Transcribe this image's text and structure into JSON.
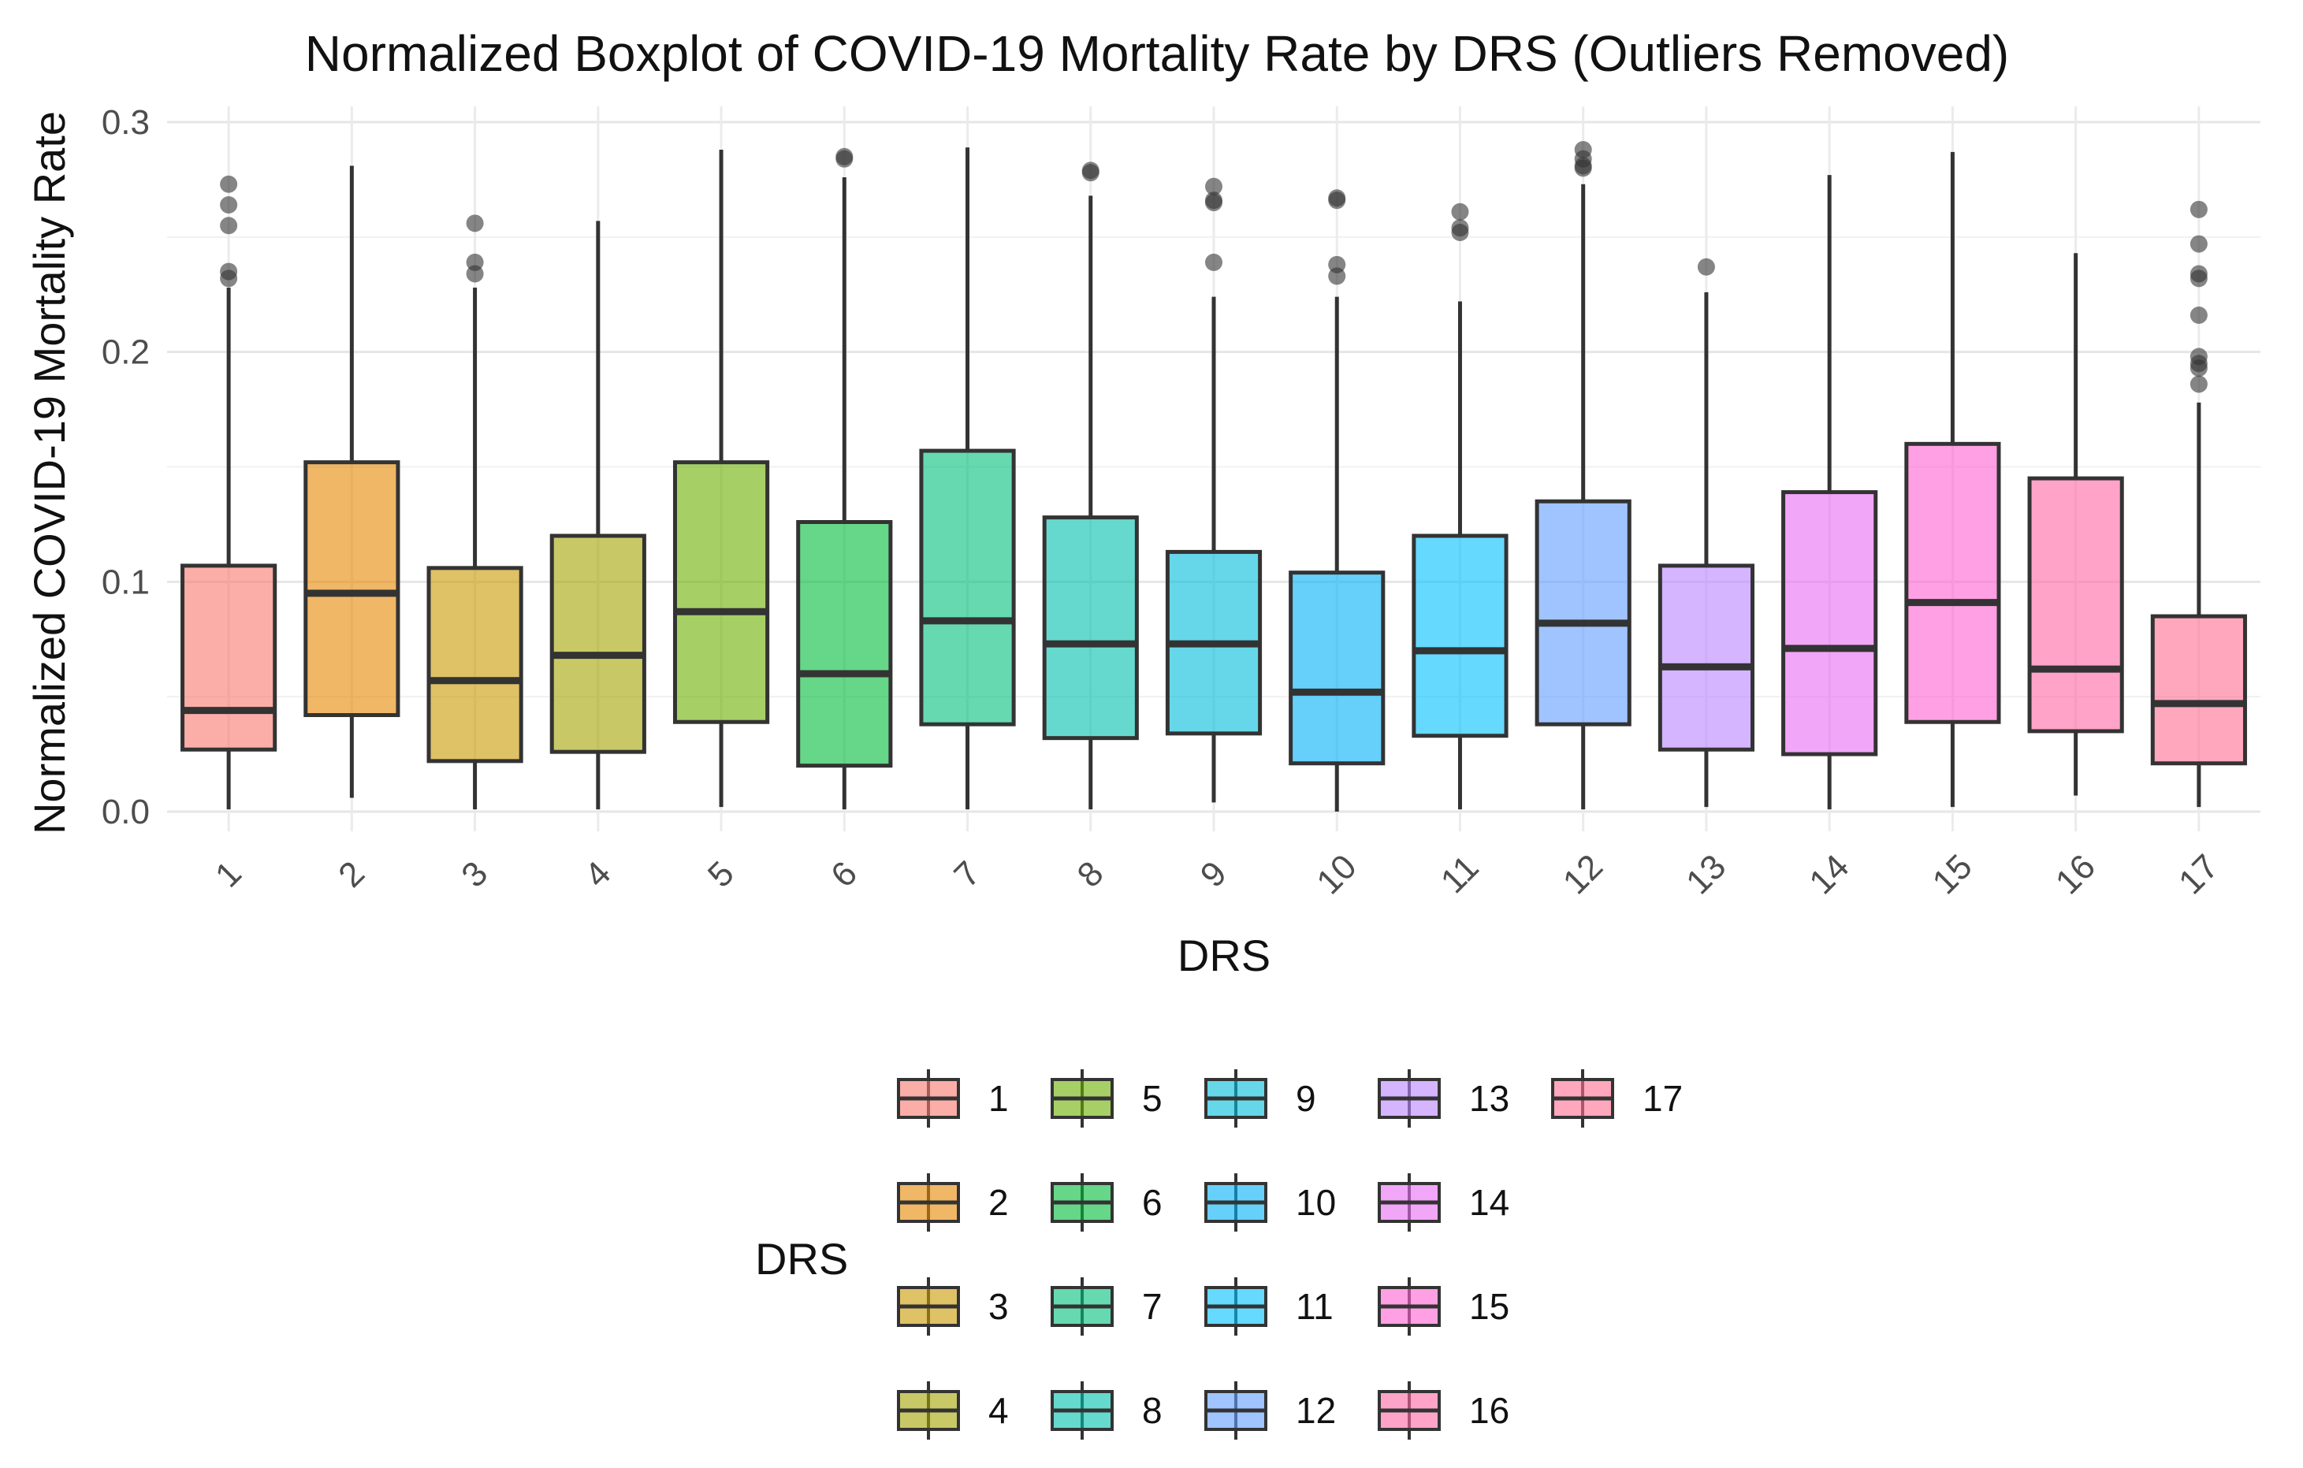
{
  "chart_data": {
    "type": "boxplot",
    "title": "Normalized Boxplot of COVID-19 Mortality Rate by DRS (Outliers Removed)",
    "xlabel": "DRS",
    "ylabel": "Normalized COVID-19 Mortality Rate",
    "ylim": [
      0.0,
      0.3
    ],
    "yticks": [
      "0.0",
      "0.1",
      "0.2",
      "0.3"
    ],
    "ytick_values": [
      0.0,
      0.1,
      0.2,
      0.3
    ],
    "grid": true,
    "legend": {
      "title": "DRS",
      "placement": "bottom"
    },
    "categories": [
      "1",
      "2",
      "3",
      "4",
      "5",
      "6",
      "7",
      "8",
      "9",
      "10",
      "11",
      "12",
      "13",
      "14",
      "15",
      "16",
      "17"
    ],
    "colors": [
      "#F8766D",
      "#E58700",
      "#C99800",
      "#A3A500",
      "#6BB100",
      "#00BA38",
      "#00BF7D",
      "#00C0AF",
      "#00BCD8",
      "#00B0F6",
      "#00BFFF",
      "#619CFF",
      "#B983FF",
      "#E76BF3",
      "#FD61D1",
      "#FF67A4",
      "#FF6C91"
    ],
    "series": [
      {
        "name": "1",
        "min": 0.001,
        "q1": 0.027,
        "median": 0.044,
        "q3": 0.107,
        "max": 0.228,
        "outliers": [
          0.273,
          0.264,
          0.255,
          0.235,
          0.232
        ]
      },
      {
        "name": "2",
        "min": 0.006,
        "q1": 0.042,
        "median": 0.095,
        "q3": 0.152,
        "max": 0.281,
        "outliers": []
      },
      {
        "name": "3",
        "min": 0.001,
        "q1": 0.022,
        "median": 0.057,
        "q3": 0.106,
        "max": 0.228,
        "outliers": [
          0.256,
          0.239,
          0.234
        ]
      },
      {
        "name": "4",
        "min": 0.001,
        "q1": 0.026,
        "median": 0.068,
        "q3": 0.12,
        "max": 0.257,
        "outliers": []
      },
      {
        "name": "5",
        "min": 0.002,
        "q1": 0.039,
        "median": 0.087,
        "q3": 0.152,
        "max": 0.288,
        "outliers": []
      },
      {
        "name": "6",
        "min": 0.001,
        "q1": 0.02,
        "median": 0.06,
        "q3": 0.126,
        "max": 0.276,
        "outliers": [
          0.285,
          0.284
        ]
      },
      {
        "name": "7",
        "min": 0.001,
        "q1": 0.038,
        "median": 0.083,
        "q3": 0.157,
        "max": 0.289,
        "outliers": []
      },
      {
        "name": "8",
        "min": 0.001,
        "q1": 0.032,
        "median": 0.073,
        "q3": 0.128,
        "max": 0.268,
        "outliers": [
          0.279,
          0.278
        ]
      },
      {
        "name": "9",
        "min": 0.004,
        "q1": 0.034,
        "median": 0.073,
        "q3": 0.113,
        "max": 0.224,
        "outliers": [
          0.272,
          0.266,
          0.265,
          0.239
        ]
      },
      {
        "name": "10",
        "min": 0.0,
        "q1": 0.021,
        "median": 0.052,
        "q3": 0.104,
        "max": 0.224,
        "outliers": [
          0.267,
          0.266,
          0.238,
          0.233
        ]
      },
      {
        "name": "11",
        "min": 0.001,
        "q1": 0.033,
        "median": 0.07,
        "q3": 0.12,
        "max": 0.222,
        "outliers": [
          0.261,
          0.254,
          0.252
        ]
      },
      {
        "name": "12",
        "min": 0.001,
        "q1": 0.038,
        "median": 0.082,
        "q3": 0.135,
        "max": 0.273,
        "outliers": [
          0.288,
          0.284,
          0.281,
          0.28
        ]
      },
      {
        "name": "13",
        "min": 0.002,
        "q1": 0.027,
        "median": 0.063,
        "q3": 0.107,
        "max": 0.226,
        "outliers": [
          0.237
        ]
      },
      {
        "name": "14",
        "min": 0.001,
        "q1": 0.025,
        "median": 0.071,
        "q3": 0.139,
        "max": 0.277,
        "outliers": []
      },
      {
        "name": "15",
        "min": 0.002,
        "q1": 0.039,
        "median": 0.091,
        "q3": 0.16,
        "max": 0.287,
        "outliers": []
      },
      {
        "name": "16",
        "min": 0.007,
        "q1": 0.035,
        "median": 0.062,
        "q3": 0.145,
        "max": 0.243,
        "outliers": []
      },
      {
        "name": "17",
        "min": 0.002,
        "q1": 0.021,
        "median": 0.047,
        "q3": 0.085,
        "max": 0.178,
        "outliers": [
          0.262,
          0.247,
          0.234,
          0.232,
          0.216,
          0.198,
          0.195,
          0.193,
          0.186
        ]
      }
    ]
  }
}
